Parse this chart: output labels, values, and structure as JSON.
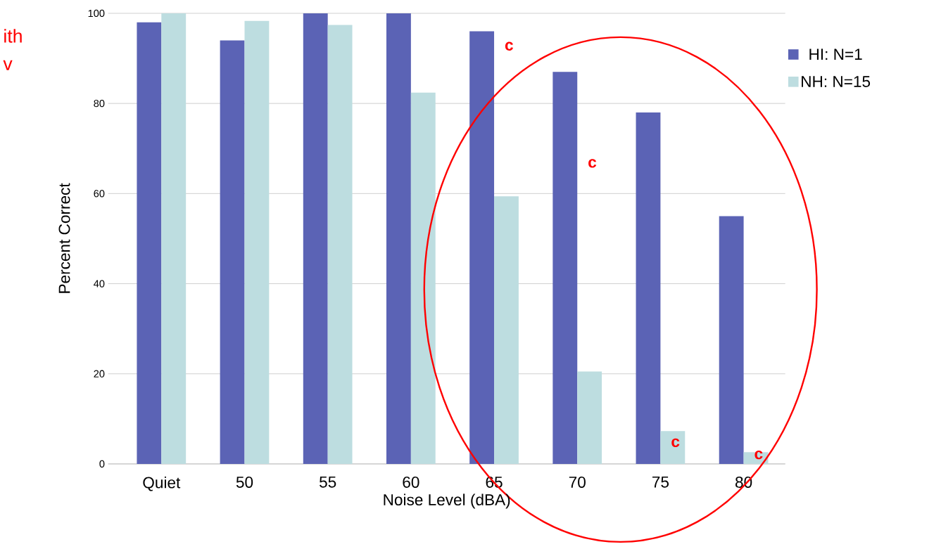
{
  "chart_data": {
    "type": "bar",
    "xlabel": "Noise Level (dBA)",
    "ylabel": "Percent Correct",
    "categories": [
      "Quiet",
      "50",
      "55",
      "60",
      "65",
      "70",
      "75",
      "80"
    ],
    "series": [
      {
        "name": "HI: N=1",
        "color": "#5b63b5",
        "values": [
          98,
          94,
          100,
          100,
          96,
          87,
          78,
          55
        ]
      },
      {
        "name": "NH: N=15",
        "color": "#bddde0",
        "values": [
          100,
          98.3,
          97.4,
          82.4,
          59.4,
          20.5,
          7.3,
          2.6
        ]
      }
    ],
    "ylim": [
      0,
      100
    ],
    "yticks": [
      0,
      20,
      40,
      60,
      80,
      100
    ],
    "grid": "y",
    "legend": "right",
    "annotations": [
      "ith",
      "v",
      {
        "text": "c",
        "x": "65",
        "y": 91
      },
      {
        "text": "c",
        "x": "70",
        "y": 65
      },
      {
        "text": "c",
        "x": "75",
        "y": 3
      },
      {
        "text": "c",
        "x": "80",
        "y": 0.3
      }
    ]
  }
}
